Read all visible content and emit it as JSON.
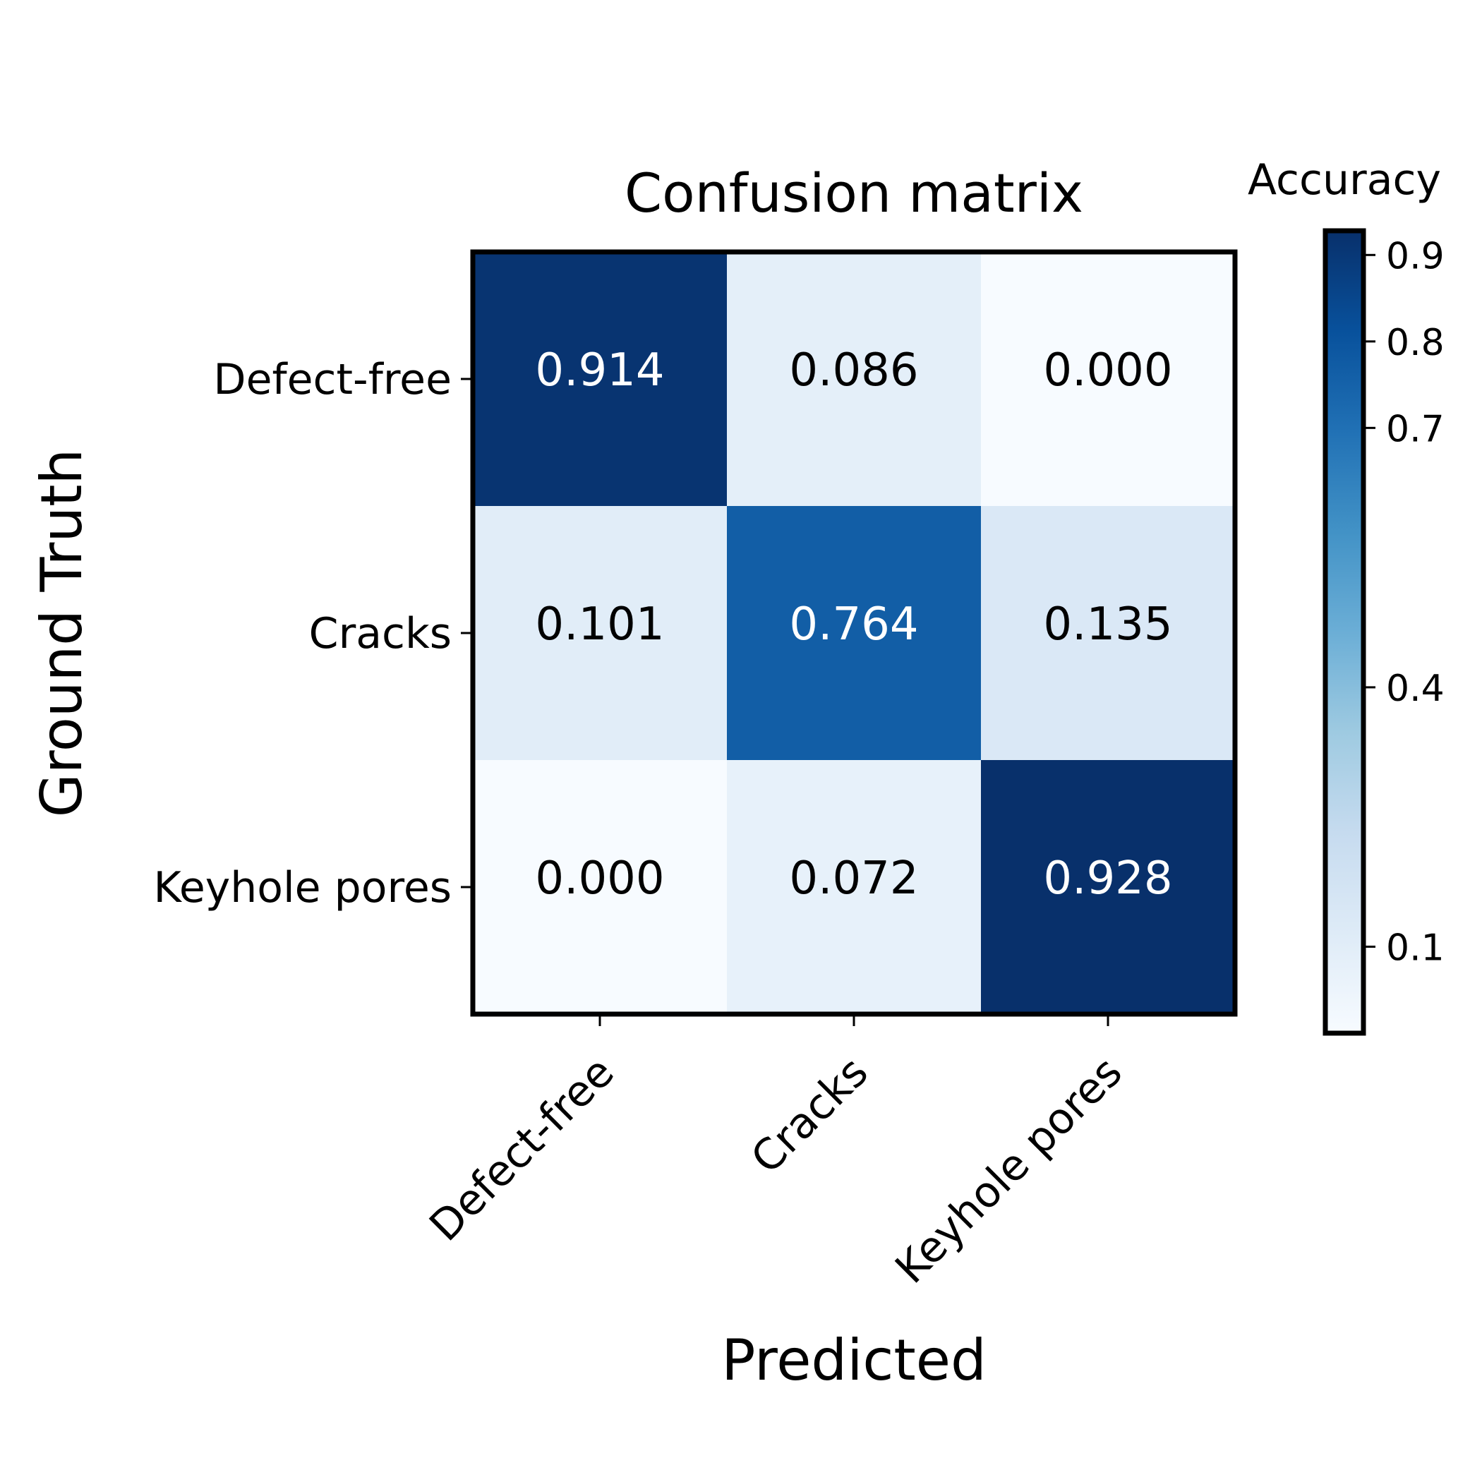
{
  "chart_data": {
    "type": "heatmap",
    "title": "Confusion matrix",
    "xlabel": "Predicted",
    "ylabel": "Ground Truth",
    "x_categories": [
      "Defect-free",
      "Cracks",
      "Keyhole pores"
    ],
    "y_categories": [
      "Defect-free",
      "Cracks",
      "Keyhole pores"
    ],
    "values": [
      [
        0.914,
        0.086,
        0.0
      ],
      [
        0.101,
        0.764,
        0.135
      ],
      [
        0.0,
        0.072,
        0.928
      ]
    ],
    "value_labels": [
      [
        "0.914",
        "0.086",
        "0.000"
      ],
      [
        "0.101",
        "0.764",
        "0.135"
      ],
      [
        "0.000",
        "0.072",
        "0.928"
      ]
    ],
    "colormap": "Blues",
    "colorbar": {
      "label": "Accuracy",
      "range": [
        0.0,
        0.928
      ],
      "ticks": [
        0.1,
        0.4,
        0.7,
        0.8,
        0.9
      ],
      "tick_labels": [
        "0.1",
        "0.4",
        "0.7",
        "0.8",
        "0.9"
      ]
    },
    "text_colors": {
      "dark_cell": "#ffffff",
      "light_cell": "#000000"
    },
    "colors": {
      "axes_frame": "#000000",
      "background": "#ffffff"
    }
  }
}
